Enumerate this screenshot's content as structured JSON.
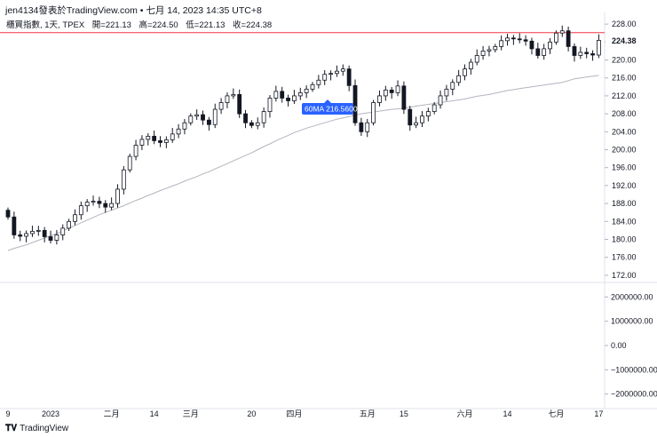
{
  "header": {
    "title": "jen4134發表於TradingView.com • 七月 14, 2023 14:35 UTC+8"
  },
  "legend": {
    "symbol": "櫃買指數, 1天, TPEX",
    "open": "開=221.13",
    "high": "高=224.50",
    "low": "低=221.13",
    "close": "收=224.38"
  },
  "footer": {
    "logo_text": "TradingView"
  },
  "chart_data": {
    "type": "candlestick",
    "price_axis": {
      "ticks": [
        "228.00",
        "224.00",
        "220.00",
        "216.00",
        "212.00",
        "208.00",
        "204.00",
        "200.00",
        "196.00",
        "192.00",
        "188.00",
        "184.00",
        "180.00",
        "176.00",
        "172.00"
      ],
      "ylim": [
        170.4,
        230.6
      ]
    },
    "last_price": {
      "label": "224.38",
      "value": 224.38
    },
    "horizontal_line": {
      "value": 226.1,
      "color": "#f23645"
    },
    "ma_label": "60MA  216.56001",
    "volume_axis": {
      "ticks": [
        "2000000.00",
        "1000000.00",
        "0.00",
        "−1000000.00",
        "−2000000.00"
      ],
      "ylim": [
        -2600000,
        2600000
      ]
    },
    "time_axis": {
      "ticks": [
        {
          "label": "9",
          "i": 0
        },
        {
          "label": "2023",
          "i": 7
        },
        {
          "label": "二月",
          "i": 17
        },
        {
          "label": "14",
          "i": 24
        },
        {
          "label": "三月",
          "i": 30
        },
        {
          "label": "20",
          "i": 40
        },
        {
          "label": "四月",
          "i": 47
        },
        {
          "label": "五月",
          "i": 59
        },
        {
          "label": "15",
          "i": 65
        },
        {
          "label": "六月",
          "i": 75
        },
        {
          "label": "14",
          "i": 82
        },
        {
          "label": "七月",
          "i": 90
        },
        {
          "label": "17",
          "i": 97
        }
      ]
    },
    "colors": {
      "up_body": "#ffffff",
      "down_body": "#131722",
      "wick": "#131722",
      "ma": "#b2b5be",
      "ma_label_bg": "#2962ff"
    },
    "closes": [
      185.0,
      181.0,
      180.7,
      181.3,
      181.8,
      182.0,
      180.6,
      179.8,
      181.0,
      182.5,
      184.0,
      185.5,
      187.5,
      188.3,
      188.5,
      188.0,
      187.2,
      188.0,
      191.2,
      195.5,
      198.5,
      201.0,
      202.3,
      203.0,
      202.0,
      201.6,
      202.2,
      203.5,
      204.6,
      206.0,
      207.5,
      207.8,
      206.6,
      205.6,
      209.0,
      210.5,
      212.0,
      212.3,
      208.0,
      206.0,
      205.4,
      206.0,
      208.5,
      211.5,
      213.0,
      211.5,
      210.9,
      212.0,
      212.7,
      213.5,
      214.5,
      215.5,
      216.8,
      217.0,
      217.5,
      218.0,
      214.3,
      206.0,
      204.0,
      206.0,
      210.5,
      212.0,
      213.3,
      212.7,
      214.2,
      209.0,
      205.5,
      206.0,
      207.5,
      208.5,
      210.0,
      212.0,
      213.5,
      215.0,
      216.5,
      218.0,
      219.5,
      221.0,
      222.0,
      222.3,
      223.0,
      224.3,
      224.9,
      224.7,
      224.5,
      224.2,
      222.5,
      221.0,
      222.5,
      224.0,
      226.0,
      226.5,
      223.0,
      221.0,
      221.7,
      221.4,
      221.1,
      224.38
    ],
    "ma60": [
      177.5,
      178.0,
      178.4,
      178.8,
      179.3,
      179.8,
      180.3,
      180.8,
      181.3,
      181.9,
      182.5,
      183.1,
      183.7,
      184.3,
      184.9,
      185.5,
      186.0,
      186.5,
      187.0,
      187.5,
      188.1,
      188.7,
      189.2,
      189.8,
      190.3,
      190.9,
      191.4,
      191.9,
      192.4,
      193.0,
      193.5,
      194.0,
      194.6,
      195.1,
      195.7,
      196.3,
      196.9,
      197.5,
      198.1,
      198.7,
      199.3,
      200.0,
      200.7,
      201.3,
      202.0,
      202.6,
      203.2,
      203.8,
      204.3,
      204.8,
      205.2,
      205.6,
      206.0,
      206.4,
      206.8,
      207.1,
      207.4,
      207.7,
      208.0,
      208.2,
      208.4,
      208.6,
      208.8,
      209.0,
      209.1,
      209.3,
      209.5,
      209.7,
      209.9,
      210.1,
      210.3,
      210.5,
      210.7,
      210.9,
      211.1,
      211.3,
      211.6,
      211.9,
      212.1,
      212.3,
      212.6,
      212.9,
      213.2,
      213.4,
      213.6,
      213.8,
      214.0,
      214.2,
      214.4,
      214.6,
      214.8,
      215.0,
      215.4,
      215.8,
      216.0,
      216.2,
      216.4,
      216.56
    ]
  }
}
